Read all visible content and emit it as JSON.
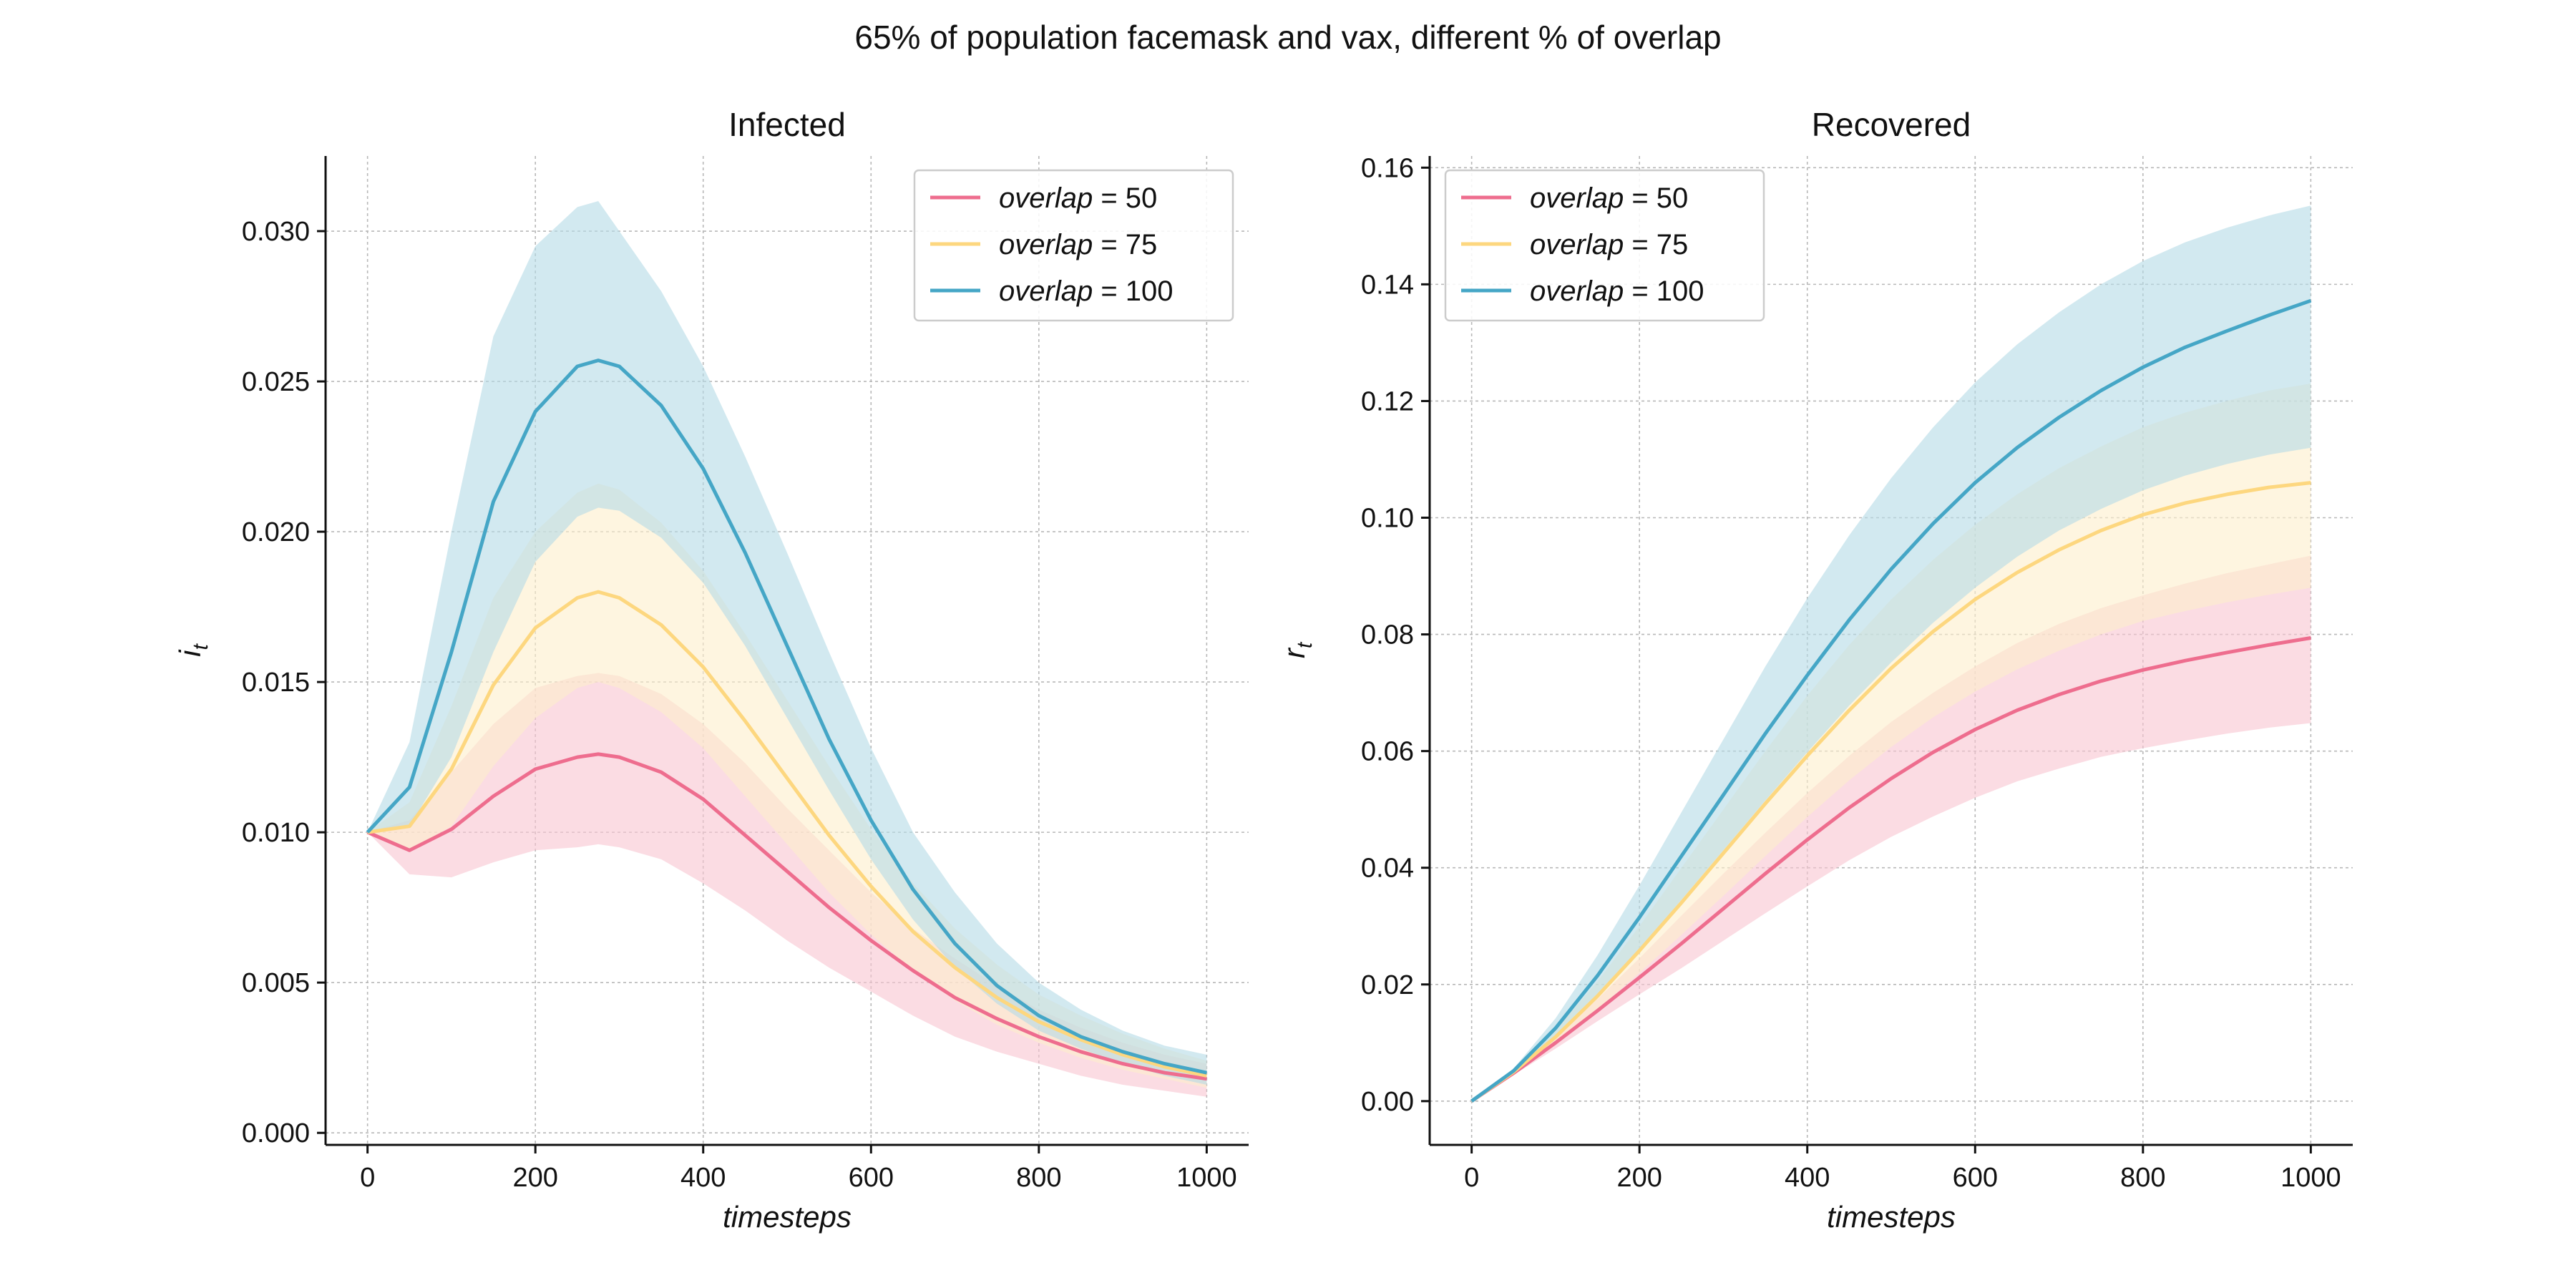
{
  "figure": {
    "suptitle": "65% of population facemask and vax, different % of overlap"
  },
  "chart_data": [
    {
      "type": "line",
      "title": "Infected",
      "xlabel": "timesteps",
      "ylabel": "i",
      "ylabel_sub": "t",
      "xlim": [
        -50,
        1050
      ],
      "ylim": [
        -0.0004,
        0.0325
      ],
      "xticks": [
        0,
        200,
        400,
        600,
        800,
        1000
      ],
      "xtick_labels": [
        "0",
        "200",
        "400",
        "600",
        "800",
        "1000"
      ],
      "yticks": [
        0.0,
        0.005,
        0.01,
        0.015,
        0.02,
        0.025,
        0.03
      ],
      "ytick_labels": [
        "0.000",
        "0.005",
        "0.010",
        "0.015",
        "0.020",
        "0.025",
        "0.030"
      ],
      "grid": true,
      "legend_position": "top-right",
      "x": [
        0,
        50,
        100,
        150,
        200,
        250,
        275,
        300,
        350,
        400,
        450,
        500,
        550,
        600,
        650,
        700,
        750,
        800,
        850,
        900,
        950,
        1000
      ],
      "series": [
        {
          "name": "overlap = 50",
          "legend_lhs": "overlap",
          "legend_rhs": "= 50",
          "color": "#EE6D8E",
          "band_color": "#F8C4D1",
          "values": [
            0.01,
            0.0094,
            0.0101,
            0.0112,
            0.0121,
            0.0125,
            0.0126,
            0.0125,
            0.012,
            0.0111,
            0.0099,
            0.0087,
            0.0075,
            0.0064,
            0.0054,
            0.0045,
            0.0038,
            0.0032,
            0.0027,
            0.0023,
            0.002,
            0.0018
          ],
          "upper": [
            0.01,
            0.0104,
            0.012,
            0.0136,
            0.0148,
            0.0152,
            0.0153,
            0.0152,
            0.0146,
            0.0136,
            0.0123,
            0.0108,
            0.0094,
            0.008,
            0.0068,
            0.0058,
            0.0049,
            0.0041,
            0.0035,
            0.003,
            0.0026,
            0.0023
          ],
          "lower": [
            0.01,
            0.0086,
            0.0085,
            0.009,
            0.0094,
            0.0095,
            0.0096,
            0.0095,
            0.0091,
            0.0083,
            0.0074,
            0.0064,
            0.0055,
            0.0047,
            0.0039,
            0.0032,
            0.0027,
            0.0023,
            0.0019,
            0.0016,
            0.0014,
            0.0012
          ]
        },
        {
          "name": "overlap = 75",
          "legend_lhs": "overlap",
          "legend_rhs": "= 75",
          "color": "#FDD77F",
          "band_color": "#FEEFCB",
          "values": [
            0.01,
            0.0102,
            0.0121,
            0.0149,
            0.0168,
            0.0178,
            0.018,
            0.0178,
            0.0169,
            0.0155,
            0.0137,
            0.0118,
            0.0099,
            0.0082,
            0.0067,
            0.0055,
            0.0045,
            0.0037,
            0.0031,
            0.0026,
            0.0022,
            0.0019
          ],
          "upper": [
            0.01,
            0.011,
            0.0142,
            0.0178,
            0.02,
            0.0213,
            0.0216,
            0.0214,
            0.0203,
            0.0187,
            0.0166,
            0.0144,
            0.0122,
            0.0101,
            0.0083,
            0.0068,
            0.0056,
            0.0046,
            0.0039,
            0.0033,
            0.0028,
            0.0024
          ],
          "lower": [
            0.01,
            0.0094,
            0.0102,
            0.0122,
            0.0138,
            0.0148,
            0.015,
            0.0148,
            0.014,
            0.0128,
            0.0112,
            0.0096,
            0.008,
            0.0066,
            0.0054,
            0.0044,
            0.0036,
            0.003,
            0.0025,
            0.0021,
            0.0018,
            0.0015
          ]
        },
        {
          "name": "overlap = 100",
          "legend_lhs": "overlap",
          "legend_rhs": "= 100",
          "color": "#45A6C6",
          "band_color": "#B4DBE6",
          "values": [
            0.01,
            0.0115,
            0.016,
            0.021,
            0.024,
            0.0255,
            0.0257,
            0.0255,
            0.0242,
            0.0221,
            0.0193,
            0.0162,
            0.0131,
            0.0104,
            0.0081,
            0.0063,
            0.0049,
            0.0039,
            0.0032,
            0.0027,
            0.0023,
            0.002
          ],
          "upper": [
            0.01,
            0.013,
            0.02,
            0.0265,
            0.0295,
            0.0308,
            0.031,
            0.03,
            0.028,
            0.0255,
            0.0225,
            0.0193,
            0.016,
            0.0128,
            0.01,
            0.008,
            0.0063,
            0.005,
            0.0041,
            0.0034,
            0.0029,
            0.0026
          ],
          "lower": [
            0.01,
            0.0102,
            0.0125,
            0.016,
            0.019,
            0.0205,
            0.0208,
            0.0207,
            0.0198,
            0.0183,
            0.0162,
            0.0138,
            0.0114,
            0.0091,
            0.0071,
            0.0055,
            0.0043,
            0.0034,
            0.0028,
            0.0023,
            0.0019,
            0.0016
          ]
        }
      ]
    },
    {
      "type": "line",
      "title": "Recovered",
      "xlabel": "timesteps",
      "ylabel": "r",
      "ylabel_sub": "t",
      "xlim": [
        -50,
        1050
      ],
      "ylim": [
        -0.0075,
        0.162
      ],
      "xticks": [
        0,
        200,
        400,
        600,
        800,
        1000
      ],
      "xtick_labels": [
        "0",
        "200",
        "400",
        "600",
        "800",
        "1000"
      ],
      "yticks": [
        0.0,
        0.02,
        0.04,
        0.06,
        0.08,
        0.1,
        0.12,
        0.14,
        0.16
      ],
      "ytick_labels": [
        "0.00",
        "0.02",
        "0.04",
        "0.06",
        "0.08",
        "0.10",
        "0.12",
        "0.14",
        "0.16"
      ],
      "grid": true,
      "legend_position": "top-left",
      "x": [
        0,
        50,
        100,
        150,
        200,
        250,
        300,
        350,
        400,
        450,
        500,
        550,
        600,
        650,
        700,
        750,
        800,
        850,
        900,
        950,
        1000
      ],
      "series": [
        {
          "name": "overlap = 50",
          "legend_lhs": "overlap",
          "legend_rhs": "= 50",
          "color": "#EE6D8E",
          "band_color": "#F8C4D1",
          "values": [
            0.0,
            0.0048,
            0.01,
            0.0155,
            0.0212,
            0.027,
            0.033,
            0.039,
            0.0448,
            0.0503,
            0.0553,
            0.0598,
            0.0637,
            0.067,
            0.0697,
            0.072,
            0.0739,
            0.0755,
            0.0769,
            0.0782,
            0.0794
          ],
          "upper": [
            0.0,
            0.0051,
            0.011,
            0.0175,
            0.0245,
            0.0318,
            0.039,
            0.046,
            0.0528,
            0.0592,
            0.065,
            0.07,
            0.0745,
            0.0785,
            0.0818,
            0.0845,
            0.0867,
            0.0887,
            0.0905,
            0.092,
            0.0935
          ],
          "lower": [
            0.0,
            0.0045,
            0.009,
            0.0137,
            0.0183,
            0.0228,
            0.0275,
            0.0322,
            0.0368,
            0.0413,
            0.0453,
            0.0488,
            0.052,
            0.0548,
            0.057,
            0.059,
            0.0605,
            0.0618,
            0.063,
            0.064,
            0.0648
          ]
        },
        {
          "name": "overlap = 75",
          "legend_lhs": "overlap",
          "legend_rhs": "= 75",
          "color": "#FDD77F",
          "band_color": "#FEEFCB",
          "values": [
            0.0,
            0.005,
            0.011,
            0.018,
            0.0258,
            0.034,
            0.0425,
            0.051,
            0.0592,
            0.067,
            0.0742,
            0.0805,
            0.086,
            0.0906,
            0.0945,
            0.0978,
            0.1005,
            0.1025,
            0.104,
            0.1052,
            0.106
          ],
          "upper": [
            0.0,
            0.0053,
            0.0122,
            0.0205,
            0.03,
            0.04,
            0.05,
            0.06,
            0.0695,
            0.0782,
            0.086,
            0.0928,
            0.0988,
            0.104,
            0.1085,
            0.1122,
            0.1155,
            0.118,
            0.12,
            0.1218,
            0.123
          ],
          "lower": [
            0.0,
            0.0047,
            0.01,
            0.0157,
            0.022,
            0.0285,
            0.0352,
            0.042,
            0.0487,
            0.055,
            0.0607,
            0.0658,
            0.0702,
            0.074,
            0.0772,
            0.08,
            0.0823,
            0.084,
            0.0855,
            0.0868,
            0.088
          ]
        },
        {
          "name": "overlap = 100",
          "legend_lhs": "overlap",
          "legend_rhs": "= 100",
          "color": "#45A6C6",
          "band_color": "#B4DBE6",
          "values": [
            0.0,
            0.0052,
            0.0125,
            0.0215,
            0.0315,
            0.042,
            0.0525,
            0.063,
            0.073,
            0.0825,
            0.0912,
            0.099,
            0.106,
            0.112,
            0.1172,
            0.1218,
            0.1258,
            0.1292,
            0.132,
            0.1347,
            0.1372
          ],
          "upper": [
            0.0,
            0.0056,
            0.0142,
            0.025,
            0.037,
            0.0495,
            0.062,
            0.0745,
            0.0862,
            0.097,
            0.1068,
            0.1155,
            0.1232,
            0.1297,
            0.1352,
            0.14,
            0.144,
            0.1472,
            0.1497,
            0.1518,
            0.1535
          ],
          "lower": [
            0.0,
            0.0048,
            0.0108,
            0.018,
            0.026,
            0.0345,
            0.043,
            0.0515,
            0.0598,
            0.0678,
            0.0752,
            0.082,
            0.088,
            0.0933,
            0.0978,
            0.1015,
            0.1047,
            0.1072,
            0.1092,
            0.1108,
            0.112
          ]
        }
      ]
    }
  ]
}
